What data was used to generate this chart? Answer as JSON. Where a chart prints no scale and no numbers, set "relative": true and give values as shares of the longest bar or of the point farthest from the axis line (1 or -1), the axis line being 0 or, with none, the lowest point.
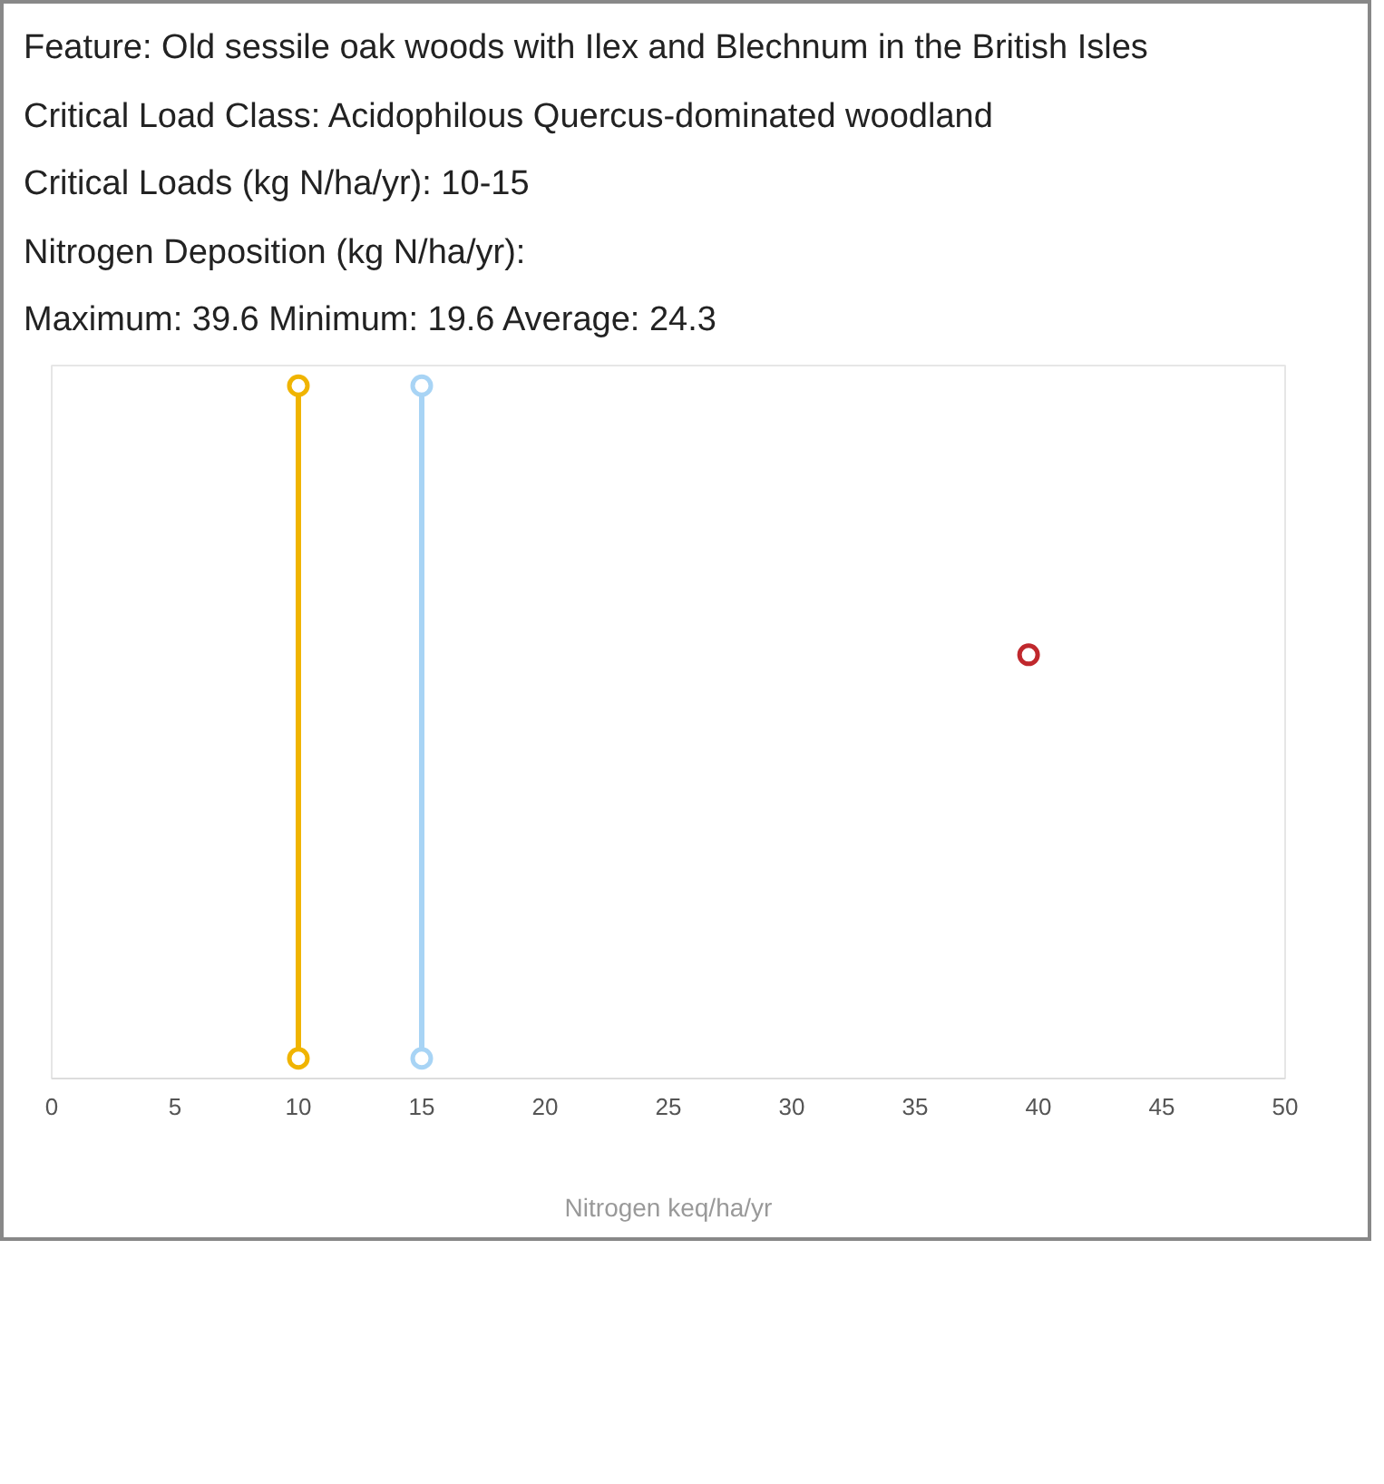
{
  "chart_data": {
    "type": "line",
    "relative": true,
    "xlabel": "Nitrogen keq/ha/yr",
    "xlim": [
      0,
      50
    ],
    "xticks": [
      0,
      5,
      10,
      15,
      20,
      25,
      30,
      35,
      40,
      45,
      50
    ],
    "marker": "circle",
    "grid": false,
    "annotations": [
      "Feature: Old sessile oak woods with Ilex and Blechnum in the British Isles",
      "Critical Load Class: Acidophilous Quercus-dominated woodland",
      "Critical Loads (kg N/ha/yr): 10-15",
      "Nitrogen Deposition (kg N/ha/yr):",
      "Maximum: 39.6 Minimum: 19.6 Average: 24.3"
    ],
    "series": [
      {
        "color": "#f0b400",
        "x": [
          10,
          10
        ],
        "values": [
          0,
          1
        ]
      },
      {
        "color": "#a8d4f5",
        "x": [
          15,
          15
        ],
        "values": [
          0,
          1
        ]
      },
      {
        "type": "scatter",
        "color": "#c0282d",
        "x": [
          39.6
        ],
        "values": [
          0.6
        ]
      }
    ]
  }
}
